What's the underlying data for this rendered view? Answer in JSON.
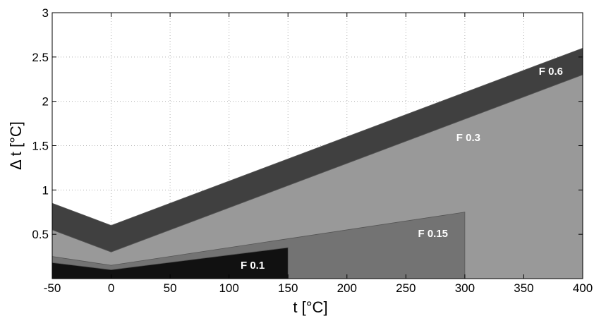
{
  "chart_data": {
    "type": "area",
    "title": "",
    "xlabel": "t [°C]",
    "ylabel": "Δ t [°C]",
    "xlim": [
      -50,
      400
    ],
    "ylim": [
      0,
      3
    ],
    "x_ticks": [
      -50,
      0,
      50,
      100,
      150,
      200,
      250,
      300,
      350,
      400
    ],
    "x_tick_labels": [
      "-50",
      "0",
      "50",
      "100",
      "150",
      "200",
      "250",
      "300",
      "350",
      "400"
    ],
    "y_ticks": [
      0.5,
      1,
      1.5,
      2,
      2.5,
      3
    ],
    "y_tick_labels": [
      "0.5",
      "1",
      "1.5",
      "2",
      "2.5",
      "3"
    ],
    "grid": true,
    "legend": "none (bands labelled inline)",
    "series": [
      {
        "name": "F 0.6",
        "x": [
          -50,
          0,
          400
        ],
        "y": [
          0.85,
          0.6,
          2.6
        ],
        "color": "#404040"
      },
      {
        "name": "F 0.3",
        "x": [
          -50,
          0,
          400
        ],
        "y": [
          0.55,
          0.3,
          2.3
        ],
        "color": "#999999"
      },
      {
        "name": "F 0.15",
        "x": [
          -50,
          0,
          300
        ],
        "y": [
          0.25,
          0.15,
          0.75
        ],
        "color": "#737373"
      },
      {
        "name": "F 0.1",
        "x": [
          -50,
          0,
          150
        ],
        "y": [
          0.18,
          0.1,
          0.35
        ],
        "color": "#111111"
      }
    ],
    "annotations": [
      {
        "text": "F 0.6",
        "x": 373,
        "y": 2.3
      },
      {
        "text": "F 0.3",
        "x": 303,
        "y": 1.55
      },
      {
        "text": "F 0.15",
        "x": 273,
        "y": 0.47
      },
      {
        "text": "F 0.1",
        "x": 120,
        "y": 0.11
      }
    ]
  }
}
